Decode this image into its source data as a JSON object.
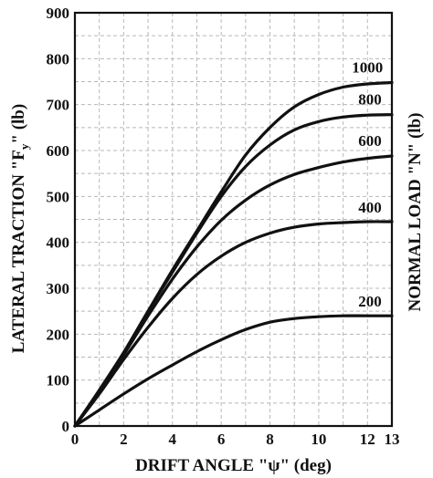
{
  "chart_data": {
    "type": "line",
    "xlabel": "DRIFT ANGLE \"ψ\" (deg)",
    "ylabel": "LATERAL TRACTION \"F",
    "ylabel_sub": "y",
    "ylabel_tail": "\" (lb)",
    "y2label": "NORMAL LOAD \"N\" (lb)",
    "xlim": [
      0,
      13
    ],
    "ylim": [
      0,
      900
    ],
    "xticks": [
      0,
      2,
      4,
      6,
      8,
      10,
      12,
      13
    ],
    "yticks": [
      0,
      100,
      200,
      300,
      400,
      500,
      600,
      700,
      800,
      900
    ],
    "grid": true,
    "legend": "labels at right ends of curves",
    "series": [
      {
        "name": "1000",
        "x": [
          0,
          1,
          2,
          3,
          4,
          5,
          6,
          7,
          8,
          9,
          10,
          11,
          12,
          13
        ],
        "y": [
          0,
          78,
          160,
          250,
          340,
          425,
          510,
          590,
          650,
          695,
          722,
          738,
          745,
          748
        ]
      },
      {
        "name": "800",
        "x": [
          0,
          1,
          2,
          3,
          4,
          5,
          6,
          7,
          8,
          9,
          10,
          11,
          12,
          13
        ],
        "y": [
          0,
          78,
          160,
          250,
          335,
          420,
          500,
          565,
          612,
          645,
          663,
          673,
          677,
          678
        ]
      },
      {
        "name": "600",
        "x": [
          0,
          1,
          2,
          3,
          4,
          5,
          6,
          7,
          8,
          9,
          10,
          11,
          12,
          13
        ],
        "y": [
          0,
          75,
          155,
          240,
          320,
          390,
          448,
          492,
          525,
          548,
          563,
          575,
          583,
          588
        ]
      },
      {
        "name": "400",
        "x": [
          0,
          1,
          2,
          3,
          4,
          5,
          6,
          7,
          8,
          9,
          10,
          11,
          12,
          13
        ],
        "y": [
          0,
          70,
          145,
          215,
          278,
          330,
          370,
          400,
          420,
          433,
          440,
          443,
          445,
          445
        ]
      },
      {
        "name": "200",
        "x": [
          0,
          1,
          2,
          3,
          4,
          5,
          6,
          7,
          8,
          9,
          10,
          11,
          12,
          13
        ],
        "y": [
          0,
          35,
          70,
          103,
          133,
          162,
          188,
          210,
          226,
          234,
          238,
          240,
          240,
          240
        ]
      }
    ],
    "series_label_positions": [
      {
        "name": "1000",
        "x": 12.0,
        "y": 770
      },
      {
        "name": "800",
        "x": 12.1,
        "y": 700
      },
      {
        "name": "600",
        "x": 12.1,
        "y": 610
      },
      {
        "name": "400",
        "x": 12.1,
        "y": 465
      },
      {
        "name": "200",
        "x": 12.1,
        "y": 260
      }
    ]
  }
}
